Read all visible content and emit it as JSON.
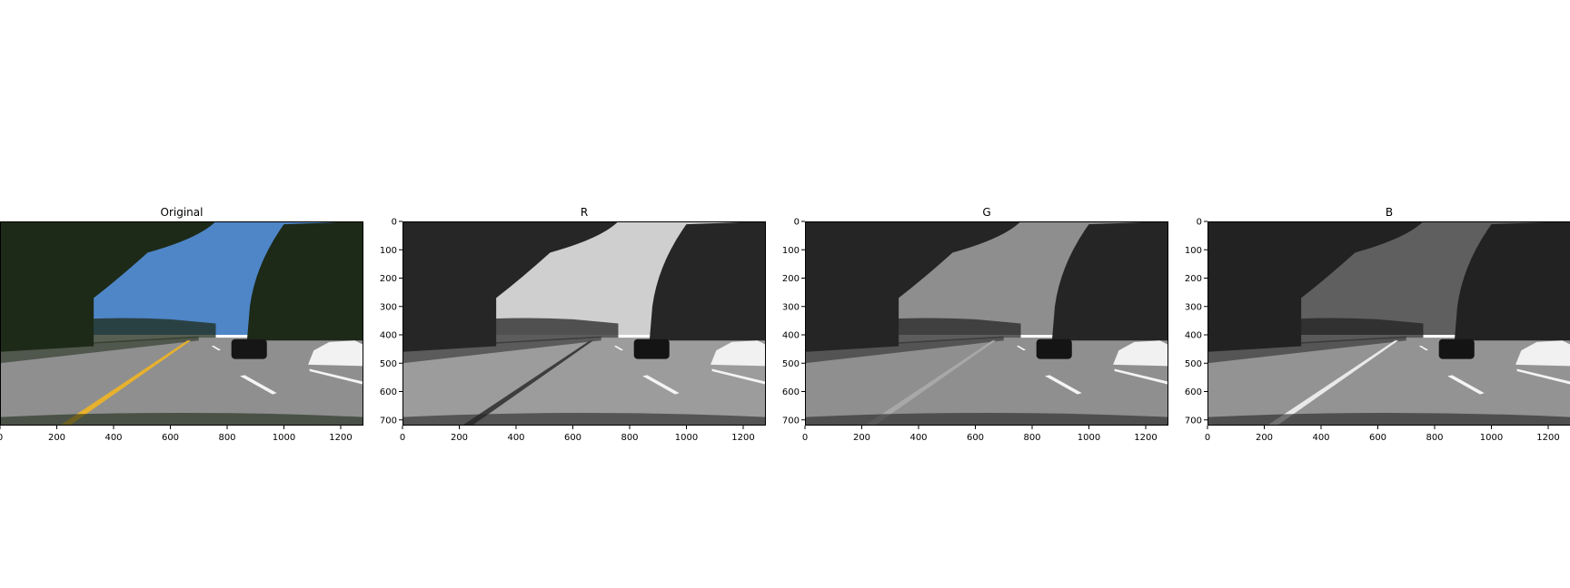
{
  "figure": {
    "image_width": 1280,
    "image_height": 720,
    "panels": [
      {
        "title": "Original",
        "mode": "color",
        "xticks": [
          "0",
          "200",
          "400",
          "600",
          "800",
          "1000",
          "1200"
        ],
        "yticks": [],
        "colors": {
          "sky": "#4f86c8",
          "road": "#8f8f8f",
          "trees": "#1d2a18",
          "lane_yellow": "#e7b12d",
          "car_white": "#f2f2f2",
          "car_black": "#161616"
        }
      },
      {
        "title": "R",
        "mode": "gray",
        "xticks": [
          "0",
          "200",
          "400",
          "600",
          "800",
          "1000",
          "1200"
        ],
        "yticks": [
          "0",
          "100",
          "200",
          "300",
          "400",
          "500",
          "600",
          "700"
        ],
        "colors": {
          "sky": "#cfcfcf",
          "road": "#9c9c9c",
          "trees": "#262626",
          "lane_yellow": "#3d3d3d",
          "car_white": "#f1f1f1",
          "car_black": "#141414"
        }
      },
      {
        "title": "G",
        "mode": "gray",
        "xticks": [
          "0",
          "200",
          "400",
          "600",
          "800",
          "1000",
          "1200"
        ],
        "yticks": [
          "0",
          "100",
          "200",
          "300",
          "400",
          "500",
          "600",
          "700"
        ],
        "colors": {
          "sky": "#8e8e8e",
          "road": "#8f8f8f",
          "trees": "#252525",
          "lane_yellow": "#a8a8a8",
          "car_white": "#f1f1f1",
          "car_black": "#141414"
        }
      },
      {
        "title": "B",
        "mode": "gray",
        "xticks": [
          "0",
          "200",
          "400",
          "600",
          "800",
          "1000",
          "1200"
        ],
        "yticks": [
          "0",
          "100",
          "200",
          "300",
          "400",
          "500",
          "600",
          "700"
        ],
        "colors": {
          "sky": "#5f5f5f",
          "road": "#939393",
          "trees": "#222222",
          "lane_yellow": "#e9e9e9",
          "car_white": "#f1f1f1",
          "car_black": "#141414"
        }
      }
    ]
  }
}
